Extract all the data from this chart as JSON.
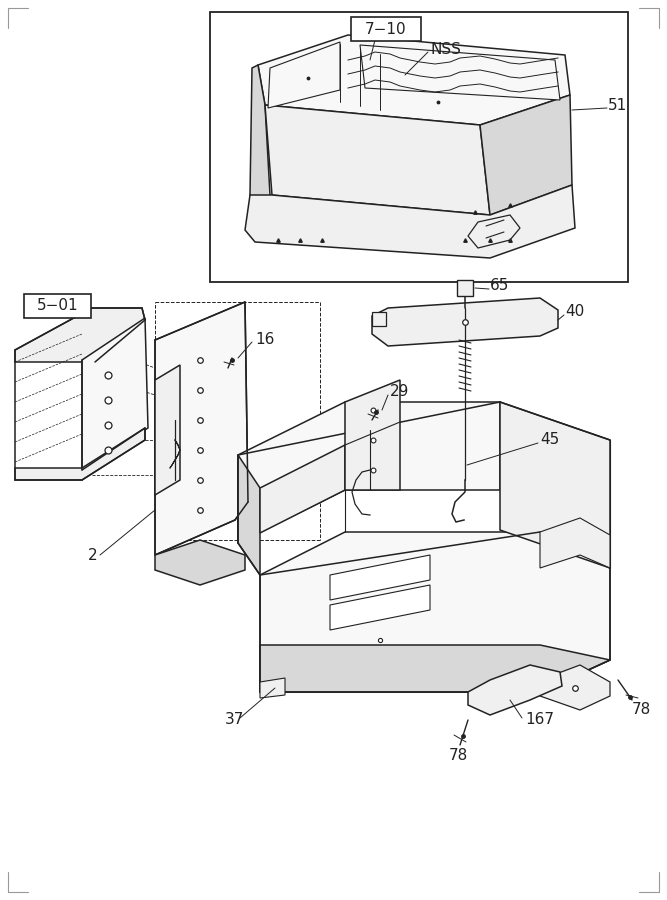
{
  "bg_color": "#ffffff",
  "line_color": "#222222",
  "gray_fill": "#f0f0f0",
  "dark_fill": "#d8d8d8",
  "light_fill": "#f8f8f8",
  "label_fs": 11,
  "thin_lw": 0.7,
  "main_lw": 1.1,
  "thick_lw": 1.5,
  "border_color": "#999999"
}
